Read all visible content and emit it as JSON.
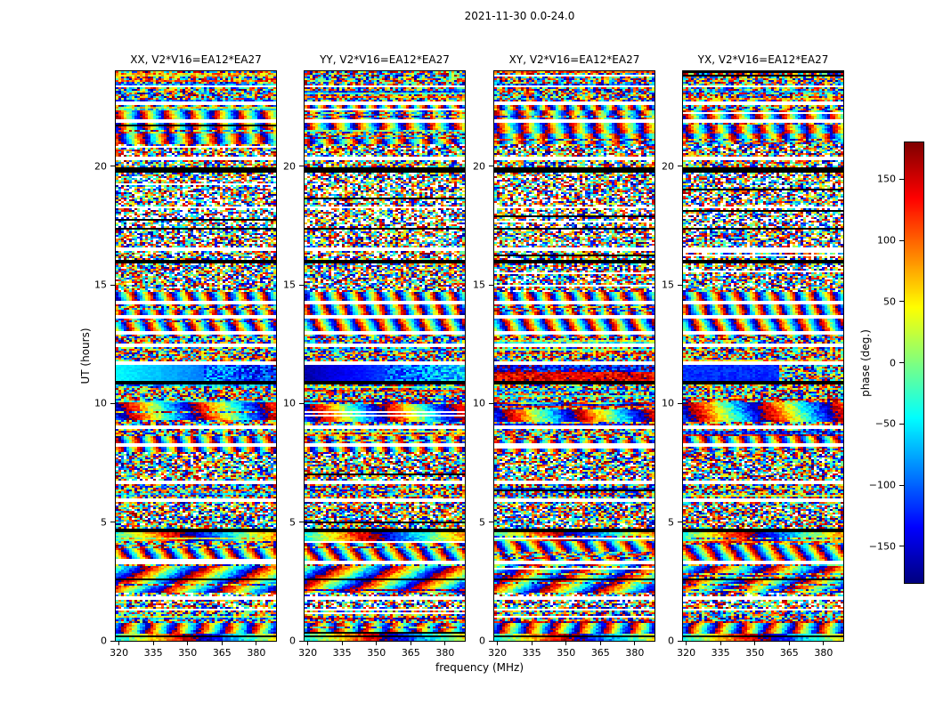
{
  "chart_data": {
    "type": "heatmap",
    "title": "2021-11-30 0.0-24.0",
    "xlabel": "frequency (MHz)",
    "ylabel": "UT (hours)",
    "xlim": [
      318.6,
      388.6
    ],
    "ylim": [
      0,
      24
    ],
    "xticks": [
      320,
      335,
      350,
      365,
      380
    ],
    "yticks": [
      0,
      5,
      10,
      15,
      20
    ],
    "grid": false,
    "panels": [
      {
        "pol": "XX",
        "title": "XX, V2*V16=EA12*EA27"
      },
      {
        "pol": "YY",
        "title": "YY, V2*V16=EA12*EA27"
      },
      {
        "pol": "XY",
        "title": "XY, V2*V16=EA12*EA27"
      },
      {
        "pol": "YX",
        "title": "YX, V2*V16=EA12*EA27"
      }
    ],
    "colorbar": {
      "label": "phase (deg.)",
      "ticks": [
        150,
        100,
        50,
        0,
        -50,
        -100,
        -150
      ],
      "vmin": -180,
      "vmax": 180,
      "colormap": "jet",
      "top_color": "#7f0000",
      "bottom_color": "#00007f"
    },
    "content": "pseudo-random interferometric visibility phase speckle vs time and frequency; horizontal white bands are flagged times, black bands are zero-phase times, smooth cyan/blue band near UT 11.0-11.6 is a calibrator scan",
    "features": {
      "calibrator_scan_ut": [
        10.95,
        11.6
      ],
      "flagged_white_bands_ut": [
        [
          1.25,
          1.38
        ],
        [
          1.75,
          1.9
        ],
        [
          3.25,
          3.4
        ],
        [
          5.85,
          5.97
        ],
        [
          6.6,
          6.72
        ],
        [
          8.15,
          8.3
        ],
        [
          8.95,
          9.07
        ],
        [
          11.62,
          11.76
        ],
        [
          12.35,
          12.5
        ],
        [
          12.9,
          13.05
        ],
        [
          13.55,
          13.7
        ],
        [
          14.15,
          14.3
        ],
        [
          16.45,
          16.57
        ],
        [
          18.2,
          18.32
        ],
        [
          20.28,
          20.4
        ],
        [
          21.85,
          22.0
        ],
        [
          22.55,
          22.7
        ],
        [
          23.3,
          23.42
        ]
      ],
      "black_bands_ut": [
        [
          0.15,
          0.25
        ],
        [
          2.55,
          2.65
        ],
        [
          4.55,
          4.72
        ],
        [
          10.82,
          10.93
        ],
        [
          15.9,
          16.02
        ],
        [
          17.35,
          17.42
        ],
        [
          19.72,
          19.95
        ]
      ]
    }
  }
}
